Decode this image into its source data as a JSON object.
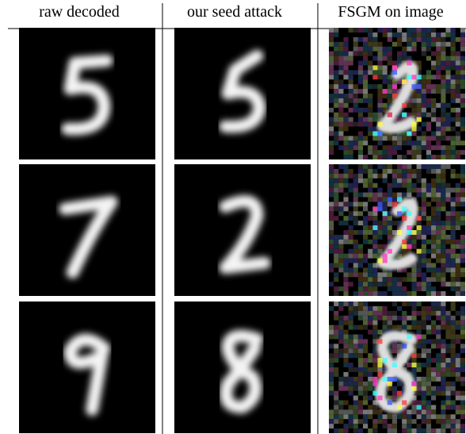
{
  "headers": [
    "raw decoded",
    "our seed attack",
    "FSGM on image"
  ]
}
